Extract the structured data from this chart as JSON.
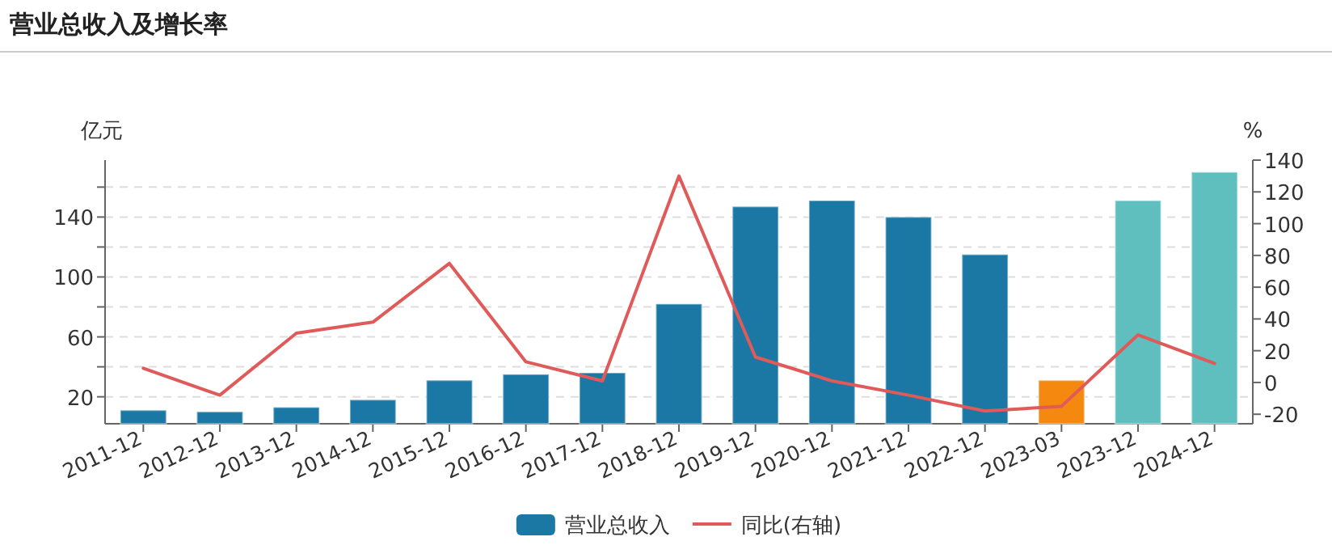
{
  "chart_data": {
    "type": "bar",
    "title": "营业总收入及增长率",
    "ylabel": "亿元",
    "y2label": "%",
    "categories": [
      "2011-12",
      "2012-12",
      "2013-12",
      "2014-12",
      "2015-12",
      "2016-12",
      "2017-12",
      "2018-12",
      "2019-12",
      "2020-12",
      "2021-12",
      "2022-12",
      "2023-03",
      "2023-12",
      "2024-12"
    ],
    "series": [
      {
        "name": "营业总收入",
        "color": "#1b77a3",
        "colors": [
          "#1b77a3",
          "#1b77a3",
          "#1b77a3",
          "#1b77a3",
          "#1b77a3",
          "#1b77a3",
          "#1b77a3",
          "#1b77a3",
          "#1b77a3",
          "#1b77a3",
          "#1b77a3",
          "#1b77a3",
          "#f5880f",
          "#5fbfbf",
          "#5fbfbf"
        ],
        "values": [
          11,
          10,
          13,
          18,
          31,
          35,
          36,
          82,
          147,
          151,
          140,
          115,
          31,
          151,
          170
        ]
      },
      {
        "name": "同比(右轴)",
        "type": "line",
        "axis": "y2",
        "color": "#e05a5a",
        "values": [
          9,
          -8,
          31,
          38,
          75,
          13,
          1,
          130,
          16,
          1,
          -8,
          -18,
          -15,
          30,
          12
        ]
      }
    ],
    "ylim": [
      2,
      178
    ],
    "yticks": [
      20,
      {
        "value": 40,
        "label": null
      },
      60,
      {
        "value": 80,
        "label": null
      },
      100,
      {
        "value": 120,
        "label": null
      },
      140,
      {
        "value": 160,
        "label": null
      }
    ],
    "y2lim": [
      -26,
      140
    ],
    "y2ticks": [
      -20,
      0,
      20,
      40,
      60,
      80,
      100,
      120,
      140
    ],
    "grid": "y",
    "legend": "bottom"
  }
}
